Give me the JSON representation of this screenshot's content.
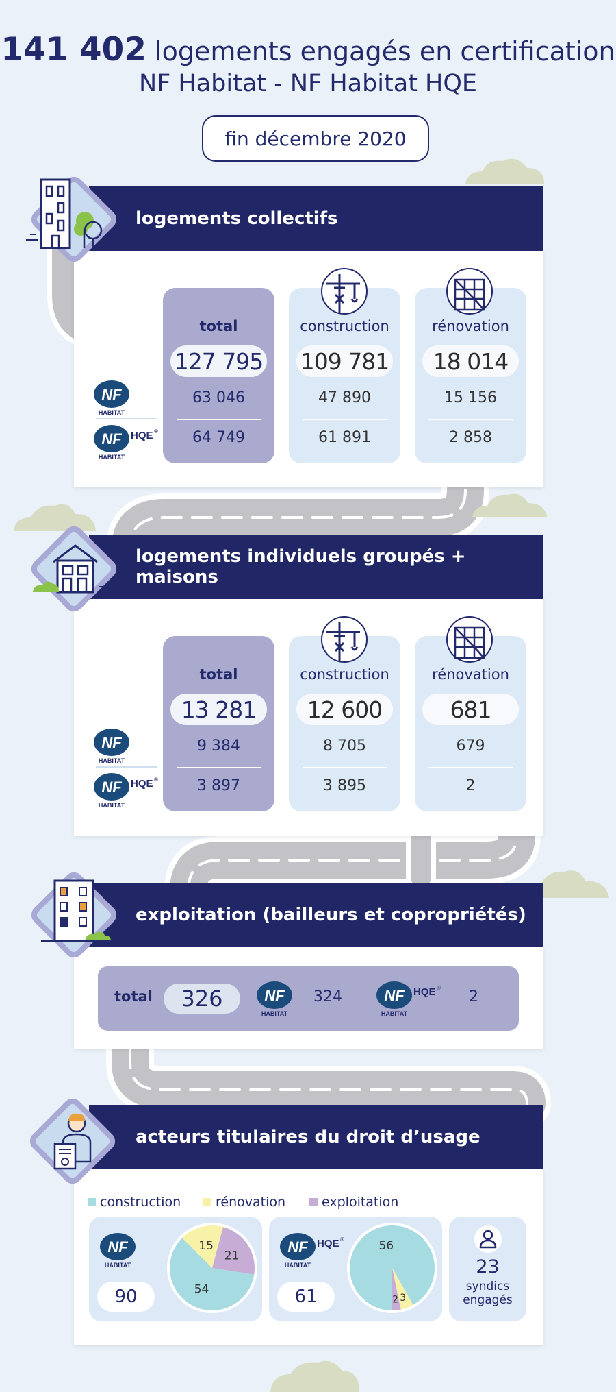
{
  "header": {
    "count": "141 402",
    "title_rest": "logements engagés en certification",
    "title_line2": "NF Habitat - NF Habitat HQE",
    "date": "fin décembre 2020"
  },
  "labels": {
    "total": "total",
    "construction": "construction",
    "renovation": "rénovation",
    "nf": "NF",
    "habitat": "HABITAT",
    "hqe": "HQE",
    "reg": "®"
  },
  "collectifs": {
    "title": "logements collectifs",
    "total": {
      "value": "127 795",
      "nf": "63 046",
      "hqe": "64 749"
    },
    "construction": {
      "value": "109 781",
      "nf": "47 890",
      "hqe": "61 891"
    },
    "renovation": {
      "value": "18 014",
      "nf": "15 156",
      "hqe": "2 858"
    }
  },
  "individuels": {
    "title": "logements individuels groupés + maisons",
    "total": {
      "value": "13 281",
      "nf": "9 384",
      "hqe": "3 897"
    },
    "construction": {
      "value": "12 600",
      "nf": "8 705",
      "hqe": "3 895"
    },
    "renovation": {
      "value": "681",
      "nf": "679",
      "hqe": "2"
    }
  },
  "exploitation": {
    "title": "exploitation (bailleurs et copropriétés)",
    "total_label": "total",
    "total": "326",
    "nf": "324",
    "hqe": "2"
  },
  "acteurs": {
    "title": "acteurs titulaires du droit d’usage",
    "legend": [
      "construction",
      "rénovation",
      "exploitation"
    ],
    "colors": {
      "construction": "#a6dbe2",
      "renovation": "#f7f2a8",
      "exploitation": "#c7acd6"
    },
    "nf_total": "90",
    "hqe_total": "61",
    "syndics_count": "23",
    "syndics_label_1": "syndics",
    "syndics_label_2": "engagés"
  },
  "chart_data": [
    {
      "type": "pie",
      "series": [
        {
          "labels": [
            "construction",
            "rénovation",
            "exploitation"
          ],
          "values": [
            54,
            15,
            21
          ]
        }
      ]
    },
    {
      "type": "pie",
      "series": [
        {
          "labels": [
            "construction",
            "rénovation",
            "exploitation"
          ],
          "values": [
            56,
            3,
            2
          ]
        }
      ]
    }
  ]
}
